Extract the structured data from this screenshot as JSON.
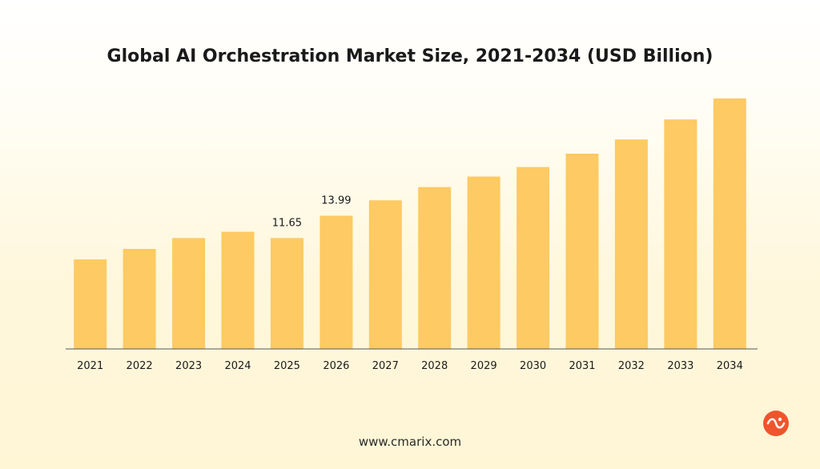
{
  "footer": {
    "site": "www.cmarix.com"
  },
  "logo": {
    "icon": "cmarix-logo-icon"
  },
  "colors": {
    "bar": "#fdca63",
    "axis": "#555555",
    "text": "#1a1a1a",
    "logo": "#f0542d"
  },
  "chart_data": {
    "type": "bar",
    "title": "Global AI Orchestration Market Size, 2021-2034 (USD Billion)",
    "xlabel": "",
    "ylabel": "",
    "categories": [
      "2021",
      "2022",
      "2023",
      "2024",
      "2025",
      "2026",
      "2027",
      "2028",
      "2029",
      "2030",
      "2031",
      "2032",
      "2033",
      "2034"
    ],
    "values": [
      9.4,
      10.5,
      11.65,
      12.3,
      11.65,
      13.99,
      15.6,
      17.0,
      18.1,
      19.1,
      20.5,
      22.0,
      24.1,
      26.3
    ],
    "data_labels": {
      "4": "11.65",
      "5": "13.99"
    },
    "ylim": [
      0,
      26.3
    ],
    "grid": false,
    "legend": "none"
  }
}
